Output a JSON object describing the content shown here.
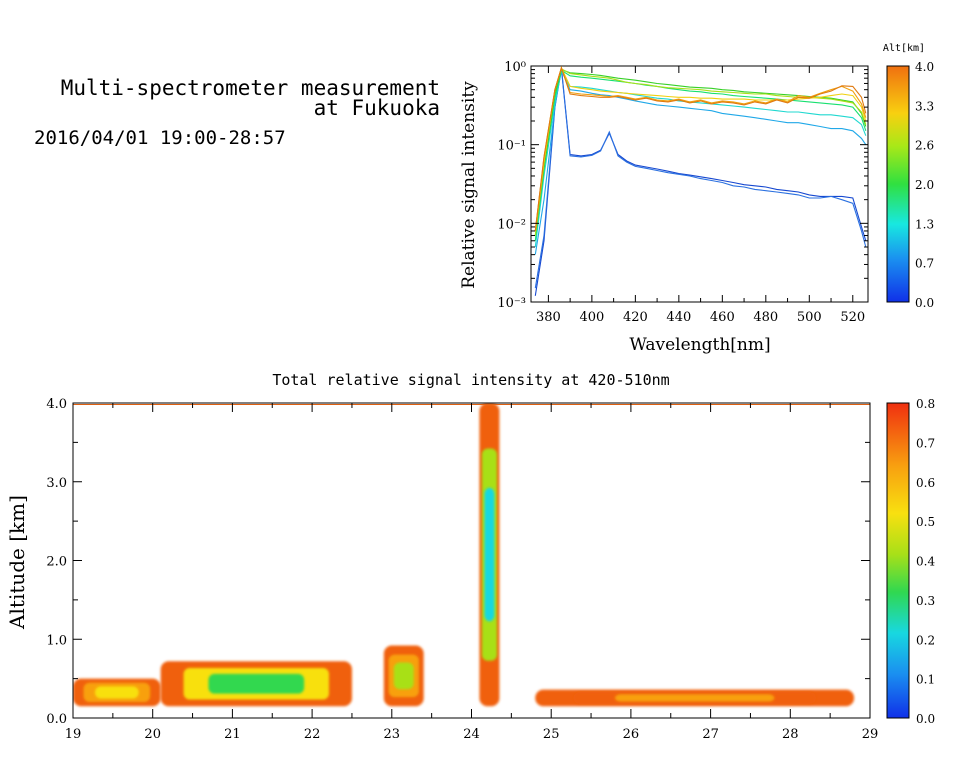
{
  "header": {
    "title_line1": "Multi-spectrometer measurement",
    "title_line2": "at Fukuoka",
    "subtitle": "2016/04/01 19:00-28:57"
  },
  "chart_data": [
    {
      "type": "line",
      "title": "",
      "xlabel": "Wavelength[nm]",
      "ylabel": "Relative signal intensity",
      "xlim": [
        372,
        527
      ],
      "ylim": [
        0.001,
        1
      ],
      "y_scale": "log",
      "x_ticks": [
        380,
        400,
        420,
        440,
        460,
        480,
        500,
        520
      ],
      "y_ticks": [
        0.001,
        0.01,
        0.1,
        1
      ],
      "y_tick_labels": [
        "10⁻³",
        "10⁻²",
        "10⁻¹",
        "10⁰"
      ],
      "grid": false,
      "x": [
        374,
        378,
        383,
        386,
        390,
        395,
        400,
        404,
        408,
        412,
        416,
        420,
        425,
        430,
        435,
        440,
        445,
        450,
        455,
        460,
        465,
        470,
        475,
        480,
        485,
        490,
        495,
        500,
        505,
        510,
        515,
        520,
        524,
        526
      ],
      "series": [
        {
          "color": "#1648d0",
          "values": [
            0.0012,
            0.006,
            0.3,
            0.95,
            0.075,
            0.072,
            0.075,
            0.085,
            0.14,
            0.075,
            0.062,
            0.055,
            0.052,
            0.049,
            0.046,
            0.043,
            0.041,
            0.039,
            0.037,
            0.035,
            0.033,
            0.031,
            0.03,
            0.029,
            0.027,
            0.026,
            0.025,
            0.023,
            0.022,
            0.022,
            0.022,
            0.021,
            0.009,
            0.006
          ]
        },
        {
          "color": "#2a70e0",
          "values": [
            0.0015,
            0.007,
            0.32,
            0.92,
            0.072,
            0.07,
            0.073,
            0.083,
            0.145,
            0.072,
            0.06,
            0.053,
            0.05,
            0.047,
            0.044,
            0.042,
            0.04,
            0.037,
            0.035,
            0.033,
            0.03,
            0.029,
            0.027,
            0.026,
            0.025,
            0.024,
            0.023,
            0.021,
            0.021,
            0.022,
            0.02,
            0.018,
            0.008,
            0.005
          ]
        },
        {
          "color": "#20a8e8",
          "values": [
            0.004,
            0.02,
            0.3,
            0.9,
            0.5,
            0.48,
            0.45,
            0.43,
            0.42,
            0.4,
            0.38,
            0.36,
            0.34,
            0.32,
            0.31,
            0.3,
            0.29,
            0.28,
            0.27,
            0.25,
            0.24,
            0.23,
            0.22,
            0.21,
            0.2,
            0.19,
            0.19,
            0.18,
            0.17,
            0.16,
            0.16,
            0.15,
            0.12,
            0.1
          ]
        },
        {
          "color": "#20d8d0",
          "values": [
            0.005,
            0.04,
            0.35,
            0.85,
            0.55,
            0.54,
            0.52,
            0.5,
            0.48,
            0.46,
            0.45,
            0.43,
            0.41,
            0.39,
            0.38,
            0.36,
            0.35,
            0.34,
            0.33,
            0.32,
            0.31,
            0.3,
            0.29,
            0.28,
            0.27,
            0.26,
            0.26,
            0.25,
            0.24,
            0.24,
            0.23,
            0.22,
            0.18,
            0.13
          ]
        },
        {
          "color": "#18e070",
          "values": [
            0.006,
            0.05,
            0.4,
            0.88,
            0.75,
            0.72,
            0.7,
            0.68,
            0.66,
            0.64,
            0.62,
            0.6,
            0.57,
            0.55,
            0.52,
            0.5,
            0.48,
            0.47,
            0.45,
            0.44,
            0.42,
            0.41,
            0.4,
            0.39,
            0.38,
            0.37,
            0.36,
            0.35,
            0.34,
            0.33,
            0.32,
            0.3,
            0.22,
            0.15
          ]
        },
        {
          "color": "#38d028",
          "values": [
            0.007,
            0.05,
            0.45,
            0.9,
            0.82,
            0.8,
            0.78,
            0.76,
            0.73,
            0.7,
            0.68,
            0.66,
            0.63,
            0.6,
            0.58,
            0.56,
            0.54,
            0.53,
            0.52,
            0.5,
            0.49,
            0.47,
            0.46,
            0.45,
            0.44,
            0.43,
            0.42,
            0.41,
            0.4,
            0.39,
            0.37,
            0.35,
            0.25,
            0.17
          ]
        },
        {
          "color": "#a8e018",
          "values": [
            0.007,
            0.06,
            0.5,
            0.92,
            0.8,
            0.77,
            0.74,
            0.72,
            0.7,
            0.66,
            0.62,
            0.6,
            0.58,
            0.55,
            0.53,
            0.52,
            0.51,
            0.5,
            0.48,
            0.47,
            0.46,
            0.45,
            0.44,
            0.44,
            0.42,
            0.41,
            0.4,
            0.4,
            0.39,
            0.38,
            0.36,
            0.34,
            0.26,
            0.18
          ]
        },
        {
          "color": "#f0d010",
          "values": [
            0.008,
            0.06,
            0.5,
            0.95,
            0.55,
            0.52,
            0.5,
            0.48,
            0.47,
            0.46,
            0.45,
            0.44,
            0.43,
            0.42,
            0.41,
            0.4,
            0.4,
            0.39,
            0.39,
            0.38,
            0.38,
            0.38,
            0.37,
            0.37,
            0.37,
            0.37,
            0.38,
            0.39,
            0.4,
            0.42,
            0.44,
            0.42,
            0.3,
            0.2
          ]
        },
        {
          "color": "#f0a010",
          "values": [
            0.008,
            0.07,
            0.5,
            0.95,
            0.46,
            0.44,
            0.43,
            0.42,
            0.41,
            0.42,
            0.4,
            0.38,
            0.4,
            0.37,
            0.36,
            0.38,
            0.35,
            0.37,
            0.34,
            0.36,
            0.35,
            0.33,
            0.36,
            0.34,
            0.38,
            0.35,
            0.42,
            0.4,
            0.45,
            0.5,
            0.55,
            0.48,
            0.33,
            0.22
          ]
        },
        {
          "color": "#e07a10",
          "values": [
            0.008,
            0.07,
            0.5,
            0.95,
            0.44,
            0.42,
            0.41,
            0.4,
            0.4,
            0.41,
            0.39,
            0.37,
            0.39,
            0.36,
            0.35,
            0.37,
            0.34,
            0.36,
            0.33,
            0.35,
            0.34,
            0.32,
            0.35,
            0.33,
            0.37,
            0.34,
            0.4,
            0.39,
            0.44,
            0.48,
            0.56,
            0.55,
            0.4,
            0.25
          ]
        }
      ],
      "legend": {
        "title": "Alt[km]",
        "range": [
          0,
          4
        ],
        "labels": [
          "4.0",
          "3.3",
          "2.6",
          "2.0",
          "1.3",
          "0.7",
          "0.0"
        ]
      }
    },
    {
      "type": "heatmap",
      "title": "Total relative signal intensity at 420-510nm",
      "xlabel": "",
      "ylabel": "Altitude [km]",
      "xlim": [
        19,
        29
      ],
      "ylim": [
        0,
        4
      ],
      "x_ticks": [
        19,
        20,
        21,
        22,
        23,
        24,
        25,
        26,
        27,
        28,
        29
      ],
      "y_ticks": [
        "0.0",
        "1.0",
        "2.0",
        "3.0",
        "4.0"
      ],
      "colorbar": {
        "range": [
          0,
          0.8
        ],
        "labels": [
          "0.8",
          "0.7",
          "0.6",
          "0.5",
          "0.4",
          "0.3",
          "0.2",
          "0.1",
          "0.0"
        ]
      },
      "features": [
        {
          "kind": "aerosol_layer",
          "time": [
            19.0,
            20.1
          ],
          "altitude": [
            0.15,
            0.5
          ],
          "value_core": 0.55,
          "value_edge": 0.7
        },
        {
          "kind": "aerosol_layer",
          "time": [
            20.1,
            22.5
          ],
          "altitude": [
            0.15,
            0.72
          ],
          "value_core": 0.35,
          "value_edge": 0.7
        },
        {
          "kind": "aerosol_patch",
          "time": [
            22.9,
            23.4
          ],
          "altitude": [
            0.15,
            0.92
          ],
          "value_core": 0.4,
          "value_edge": 0.7
        },
        {
          "kind": "cloud_column",
          "time": [
            24.1,
            24.35
          ],
          "altitude": [
            0.15,
            4.0
          ],
          "value_core": 0.2,
          "value_edge": 0.7
        },
        {
          "kind": "aerosol_layer",
          "time": [
            24.8,
            28.8
          ],
          "altitude": [
            0.15,
            0.36
          ],
          "value_core": 0.6,
          "value_edge": 0.72
        }
      ]
    }
  ]
}
